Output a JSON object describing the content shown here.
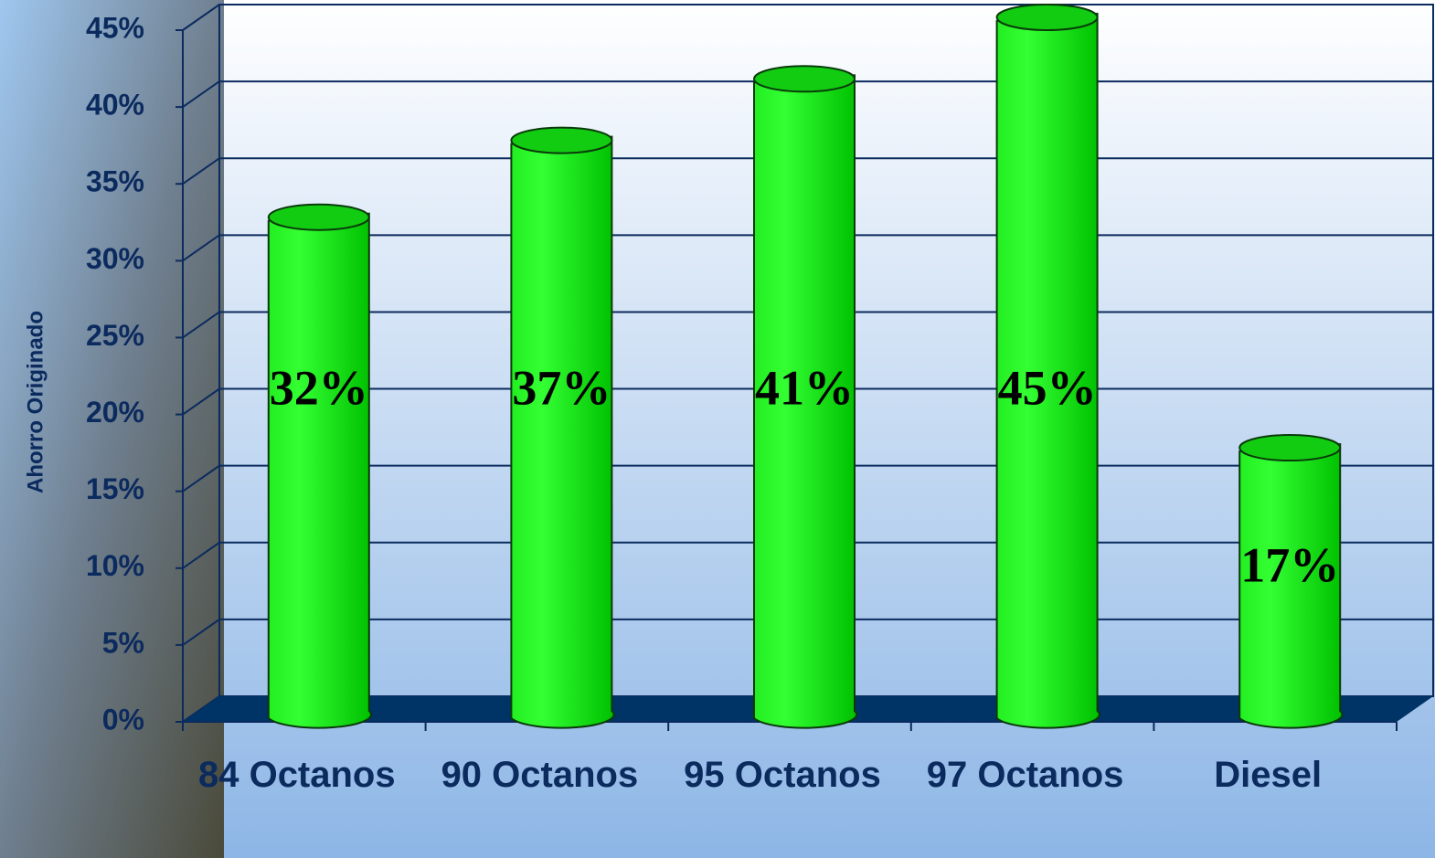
{
  "chart_data": {
    "type": "bar",
    "y_label": "Ahorro Originado",
    "categories": [
      "84 Octanos",
      "90 Octanos",
      "95 Octanos",
      "97 Octanos",
      "Diesel"
    ],
    "values": [
      32,
      37,
      41,
      45,
      17
    ],
    "value_labels": [
      "32%",
      "37%",
      "41%",
      "45%",
      "17%"
    ],
    "color": "#1ee81e",
    "ylim": [
      0,
      45
    ],
    "yticks": [
      {
        "value": 0,
        "label": "0%"
      },
      {
        "value": 5,
        "label": "5%"
      },
      {
        "value": 10,
        "label": "10%"
      },
      {
        "value": 15,
        "label": "15%"
      },
      {
        "value": 20,
        "label": "20%"
      },
      {
        "value": 25,
        "label": "25%"
      },
      {
        "value": 30,
        "label": "30%"
      },
      {
        "value": 35,
        "label": "35%"
      },
      {
        "value": 40,
        "label": "40%"
      },
      {
        "value": 45,
        "label": "45%"
      }
    ],
    "grid": true
  }
}
